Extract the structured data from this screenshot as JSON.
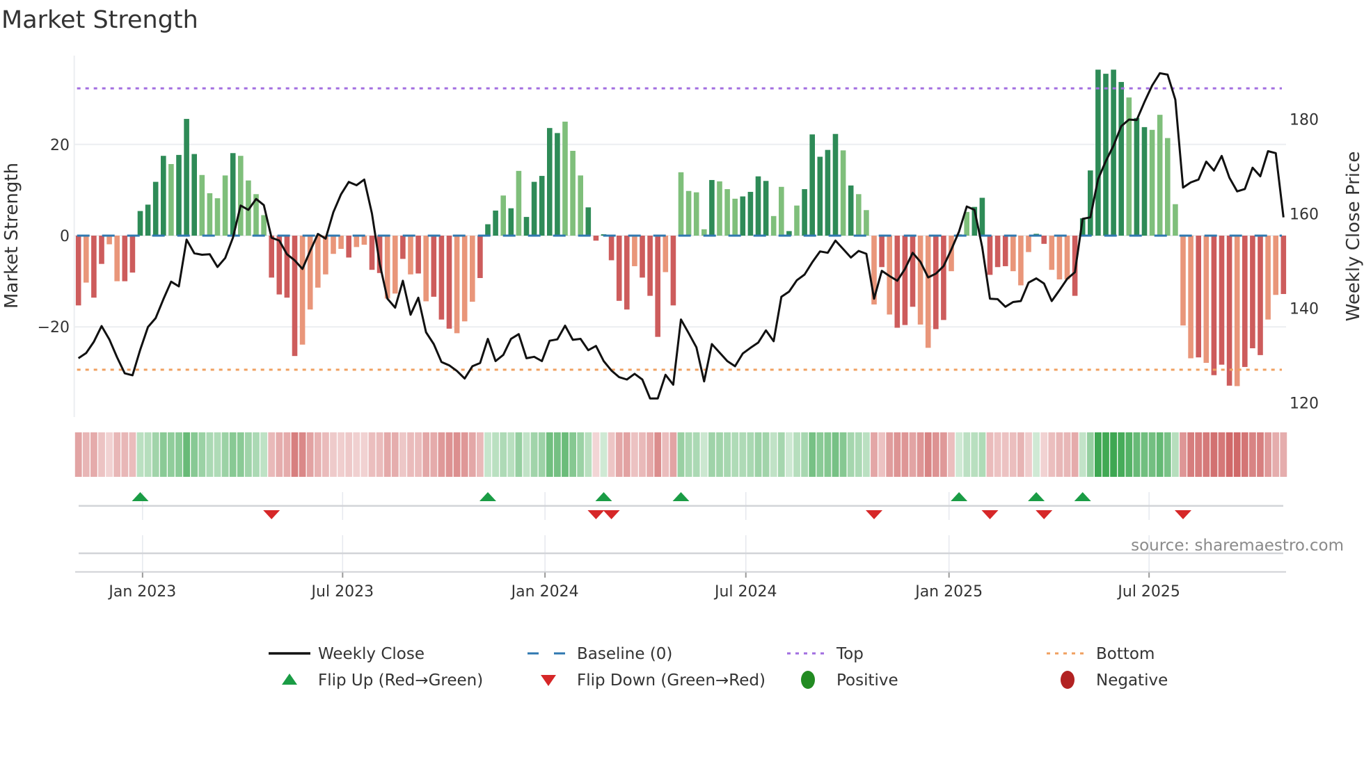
{
  "title": "Market Strength",
  "source": "source: sharemaestro.com",
  "colors": {
    "pos_dark": "#2e8b57",
    "pos_light": "#7fbf7b",
    "neg_dark": "#cd5c5c",
    "neg_light": "#e9967a",
    "price": "#111111",
    "baseline": "#2f78b0",
    "top": "#a26ee0",
    "bottom": "#f0a060",
    "flip_up": "#1a9c45",
    "flip_down": "#d62728",
    "positive": "#228b22",
    "negative": "#b22222"
  },
  "legend": [
    {
      "label": "Weekly Close",
      "kind": "line"
    },
    {
      "label": "Baseline (0)",
      "kind": "dash"
    },
    {
      "label": "Top",
      "kind": "dot-top"
    },
    {
      "label": "Bottom",
      "kind": "dot-bottom"
    },
    {
      "label": "Flip Up (Red→Green)",
      "kind": "tri-up"
    },
    {
      "label": "Flip Down (Green→Red)",
      "kind": "tri-down"
    },
    {
      "label": "Positive",
      "kind": "circle-pos"
    },
    {
      "label": "Negative",
      "kind": "circle-neg"
    }
  ],
  "chart_data": {
    "type": "bar",
    "title": "Market Strength",
    "ylabel": "Market Strength",
    "y2label": "Weekly Close Price",
    "ylim": [
      -39.5,
      39.5
    ],
    "y2lim": [
      117,
      193.4
    ],
    "yticks": [
      {
        "value": 20,
        "label": "20"
      },
      {
        "value": 0,
        "label": "0"
      },
      {
        "value": -20,
        "label": "−20"
      }
    ],
    "y2ticks": [
      {
        "value": 180,
        "label": "180"
      },
      {
        "value": 160,
        "label": "160"
      },
      {
        "value": 140,
        "label": "140"
      },
      {
        "value": 120,
        "label": "120"
      }
    ],
    "xticks": [
      {
        "week": 8.3,
        "label": "Jan 2023"
      },
      {
        "week": 34.2,
        "label": "Jul 2023"
      },
      {
        "week": 60.4,
        "label": "Jan 2024"
      },
      {
        "week": 86.4,
        "label": "Jul 2024"
      },
      {
        "week": 112.7,
        "label": "Jan 2025"
      },
      {
        "week": 138.6,
        "label": "Jul 2025"
      }
    ],
    "top_level": 32.3,
    "bottom_level": -29.4,
    "baseline": 0,
    "strength": [
      -15.3,
      -10.3,
      -13.6,
      -6.2,
      -1.9,
      -10.0,
      -10.0,
      -8.1,
      5.4,
      6.8,
      11.8,
      17.5,
      15.7,
      17.7,
      25.6,
      17.9,
      13.3,
      9.3,
      8.2,
      13.2,
      18.1,
      17.5,
      12.1,
      9.1,
      4.5,
      -9.2,
      -12.9,
      -13.6,
      -26.4,
      -23.9,
      -16.2,
      -11.4,
      -8.5,
      -4.0,
      -2.9,
      -4.8,
      -2.5,
      -2.0,
      -7.5,
      -8.2,
      -13.8,
      -12.7,
      -5.1,
      -8.5,
      -8.3,
      -14.4,
      -13.4,
      -18.4,
      -20.4,
      -21.4,
      -18.8,
      -14.5,
      -9.3,
      2.5,
      5.5,
      8.8,
      6.0,
      14.2,
      4.1,
      11.8,
      13.1,
      23.6,
      22.5,
      25.0,
      18.6,
      13.2,
      6.2,
      -1.1,
      0.3,
      -5.4,
      -14.3,
      -16.2,
      -6.7,
      -9.2,
      -13.2,
      -22.2,
      -8.0,
      -15.3,
      13.9,
      9.8,
      9.5,
      1.4,
      12.2,
      11.9,
      10.2,
      8.1,
      8.6,
      9.6,
      13.0,
      12.0,
      4.3,
      10.7,
      1.0,
      6.6,
      10.2,
      22.2,
      17.3,
      18.8,
      22.3,
      18.7,
      11.0,
      9.1,
      5.6,
      -15.1,
      -6.9,
      -17.3,
      -20.2,
      -19.6,
      -15.6,
      -19.5,
      -24.6,
      -20.5,
      -18.5,
      -7.8,
      0.3,
      5.2,
      6.3,
      8.3,
      -8.6,
      -6.9,
      -6.7,
      -7.8,
      -10.9,
      -3.6,
      0.4,
      -1.8,
      -7.5,
      -9.6,
      -9.6,
      -13.2,
      3.8,
      14.3,
      36.4,
      35.5,
      36.4,
      33.7,
      30.3,
      25.8,
      23.8,
      23.2,
      26.5,
      21.4,
      6.9,
      -19.7,
      -26.9,
      -26.7,
      -27.9,
      -30.6,
      -28.3,
      -32.9,
      -33.0,
      -28.8,
      -24.7,
      -26.2,
      -18.4,
      -13.0,
      -12.8
    ],
    "shade": "dlddllddddddldddlllldllllddddlllllldllddlldldldddllldddldldddddlllddddddldddldlllldlllddddlldldddddldllldldddllddllldddddlllddllldddddddlddlllllldldddldddlldlll",
    "weekly_close": [
      129.4,
      130.5,
      132.9,
      136.2,
      133.4,
      129.6,
      126.2,
      125.8,
      131.2,
      136.0,
      137.9,
      141.9,
      145.6,
      144.6,
      154.5,
      151.6,
      151.3,
      151.4,
      148.7,
      150.6,
      154.9,
      161.7,
      160.8,
      163.1,
      161.8,
      154.9,
      154.3,
      151.4,
      150.1,
      148.3,
      152.1,
      155.7,
      154.7,
      160.3,
      164.1,
      166.7,
      166.0,
      167.2,
      160.0,
      149.4,
      142.0,
      140.1,
      145.8,
      138.6,
      142.2,
      134.9,
      132.4,
      128.6,
      127.9,
      126.7,
      125.1,
      127.7,
      128.4,
      133.5,
      128.8,
      130.1,
      133.5,
      134.5,
      129.4,
      129.7,
      128.8,
      133.1,
      133.4,
      136.3,
      133.3,
      133.5,
      131.1,
      132.0,
      128.8,
      126.8,
      125.4,
      124.9,
      126.1,
      124.9,
      120.9,
      120.9,
      125.9,
      123.8,
      137.6,
      134.7,
      131.7,
      124.5,
      132.4,
      130.6,
      128.8,
      127.7,
      130.4,
      131.6,
      132.7,
      135.3,
      133.0,
      142.4,
      143.5,
      145.9,
      147.1,
      149.7,
      152.0,
      151.7,
      154.3,
      152.5,
      150.7,
      152.1,
      151.5,
      142.0,
      147.9,
      146.8,
      145.8,
      148.3,
      151.7,
      149.8,
      146.5,
      147.3,
      148.9,
      152.4,
      156.2,
      161.5,
      160.8,
      152.9,
      142.0,
      141.9,
      140.3,
      141.3,
      141.5,
      145.4,
      146.3,
      145.2,
      141.5,
      143.8,
      146.2,
      147.6,
      158.9,
      159.2,
      167.3,
      171.1,
      174.4,
      178.5,
      179.9,
      179.8,
      183.6,
      187.1,
      189.7,
      189.4,
      184.1,
      165.5,
      166.6,
      167.2,
      171.0,
      169.1,
      172.2,
      167.6,
      164.7,
      165.2,
      169.7,
      167.9,
      173.2,
      172.8,
      159.2
    ],
    "flip_up_weeks": [
      8,
      53,
      68,
      78,
      114,
      124,
      130
    ],
    "flip_down_weeks": [
      25,
      67,
      69,
      103,
      118,
      125,
      143
    ],
    "legend_position": "bottom"
  }
}
